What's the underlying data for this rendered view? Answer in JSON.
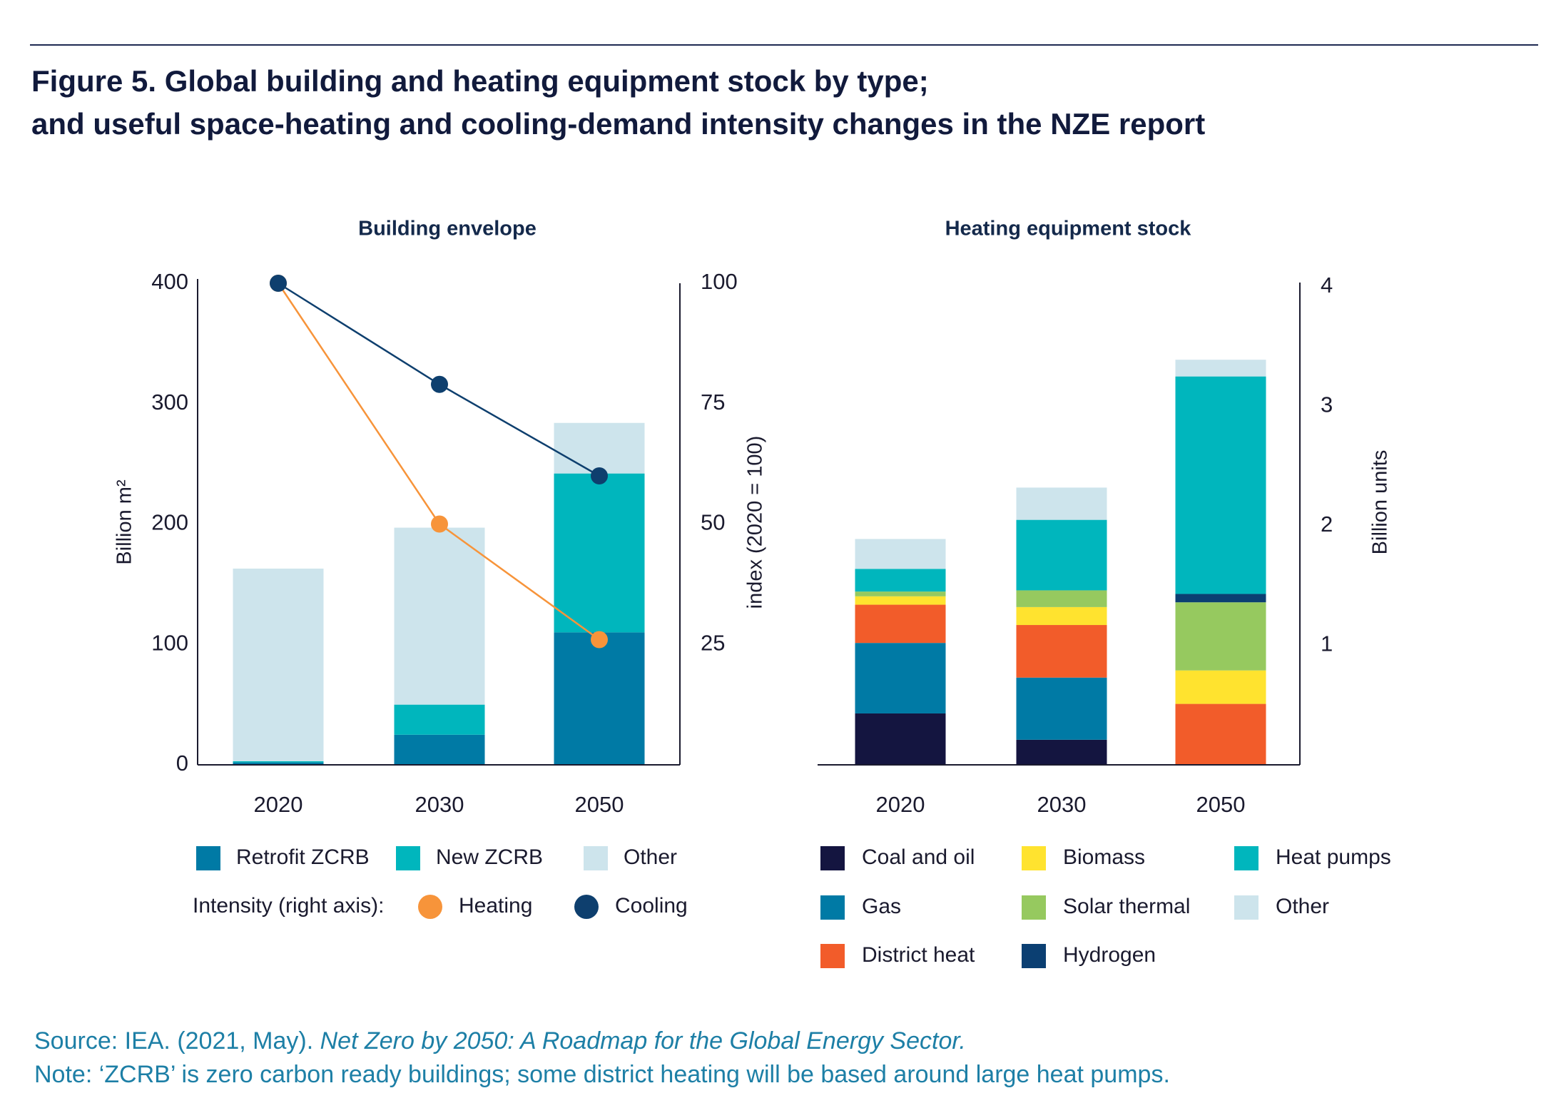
{
  "figure": {
    "title_line1": "Figure 5. Global building and heating equipment stock by type;",
    "title_line2": "and useful space-heating and cooling-demand intensity changes in the NZE report"
  },
  "colors": {
    "axis": "#1a1a2e",
    "retrofit_zcrb": "#007aa5",
    "new_zcrb": "#00b6bd",
    "other": "#cde4ec",
    "heating": "#f7943a",
    "cooling": "#0e3f6e",
    "coal_and_oil": "#141540",
    "gas": "#007aa5",
    "district_heat": "#f25c2a",
    "biomass": "#ffe32f",
    "solar_thermal": "#96c95f",
    "hydrogen": "#0b3f72",
    "heat_pumps": "#00b6bd"
  },
  "chart_data": [
    {
      "type": "bar",
      "stacked": true,
      "title": "Building envelope",
      "categories": [
        "2020",
        "2030",
        "2050"
      ],
      "ylabel": "Billion m²",
      "ylim": [
        0,
        400
      ],
      "yticks": [
        "0",
        "100",
        "200",
        "300",
        "400"
      ],
      "y2label": "index (2020 = 100)",
      "y2lim": [
        0,
        100
      ],
      "y2ticks": [
        "25",
        "50",
        "75",
        "100"
      ],
      "series": [
        {
          "name": "Retrofit ZCRB",
          "color_key": "retrofit_zcrb",
          "values": [
            2,
            25,
            110
          ]
        },
        {
          "name": "New ZCRB",
          "color_key": "new_zcrb",
          "values": [
            1,
            25,
            132
          ]
        },
        {
          "name": "Other",
          "color_key": "other",
          "values": [
            160,
            147,
            42
          ]
        }
      ],
      "lines": [
        {
          "name": "Heating",
          "color_key": "heating",
          "axis": "right",
          "values": [
            100,
            50,
            26
          ]
        },
        {
          "name": "Cooling",
          "color_key": "cooling",
          "axis": "right",
          "values": [
            100,
            79,
            60
          ]
        }
      ],
      "legend_line_prefix": "Intensity (right axis):",
      "legend": "bottom",
      "grid": false
    },
    {
      "type": "bar",
      "stacked": true,
      "title": "Heating equipment stock",
      "categories": [
        "2020",
        "2030",
        "2050"
      ],
      "ylabel": "Billion units",
      "ylim": [
        0,
        4
      ],
      "yticks": [
        "1",
        "2",
        "3",
        "4"
      ],
      "series": [
        {
          "name": "Coal and oil",
          "color_key": "coal_and_oil",
          "values": [
            0.43,
            0.21,
            0
          ]
        },
        {
          "name": "Gas",
          "color_key": "gas",
          "values": [
            0.59,
            0.52,
            0
          ]
        },
        {
          "name": "District heat",
          "color_key": "district_heat",
          "values": [
            0.32,
            0.44,
            0.51
          ]
        },
        {
          "name": "Biomass",
          "color_key": "biomass",
          "values": [
            0.07,
            0.15,
            0.28
          ]
        },
        {
          "name": "Solar thermal",
          "color_key": "solar_thermal",
          "values": [
            0.04,
            0.14,
            0.57
          ]
        },
        {
          "name": "Hydrogen",
          "color_key": "hydrogen",
          "values": [
            0,
            0,
            0.07
          ]
        },
        {
          "name": "Heat pumps",
          "color_key": "heat_pumps",
          "values": [
            0.19,
            0.59,
            1.82
          ]
        },
        {
          "name": "Other",
          "color_key": "other",
          "values": [
            0.25,
            0.27,
            0.14
          ]
        }
      ],
      "legend": "bottom",
      "grid": false
    }
  ],
  "footer": {
    "source_prefix": "Source: IEA. (2021, May). ",
    "source_title": "Net Zero by 2050: A Roadmap for the Global Energy Sector.",
    "note": "Note: ‘ZCRB’ is zero carbon ready buildings; some district heating will be based around large heat pumps."
  }
}
